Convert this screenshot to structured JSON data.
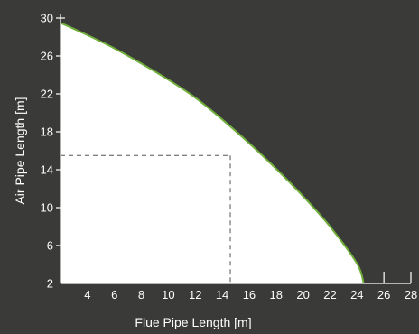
{
  "chart_data": {
    "type": "area",
    "xlabel": "Flue Pipe Length [m]",
    "ylabel": "Air Pipe Length [m]",
    "xlim": [
      2,
      28
    ],
    "ylim": [
      2,
      30
    ],
    "x_ticks": [
      4,
      6,
      8,
      10,
      12,
      14,
      16,
      18,
      20,
      22,
      24,
      26,
      28
    ],
    "y_ticks": [
      2,
      6,
      10,
      14,
      18,
      22,
      26,
      30
    ],
    "series": [
      {
        "x": [
          2,
          4,
          6,
          8,
          10,
          12,
          14,
          16,
          18,
          20,
          22,
          24,
          24.5
        ],
        "y": [
          29.5,
          28.2,
          26.8,
          25.2,
          23.5,
          21.6,
          19.3,
          16.8,
          14.1,
          11.2,
          8.0,
          4.1,
          2.0
        ]
      }
    ],
    "reference_point": {
      "x": 14.6,
      "y": 15.5
    },
    "colors": {
      "background": "#3a3a38",
      "fill": "#ffffff",
      "line": "#6fae3a",
      "axis": "#ffffff",
      "reference": "#555555"
    }
  }
}
